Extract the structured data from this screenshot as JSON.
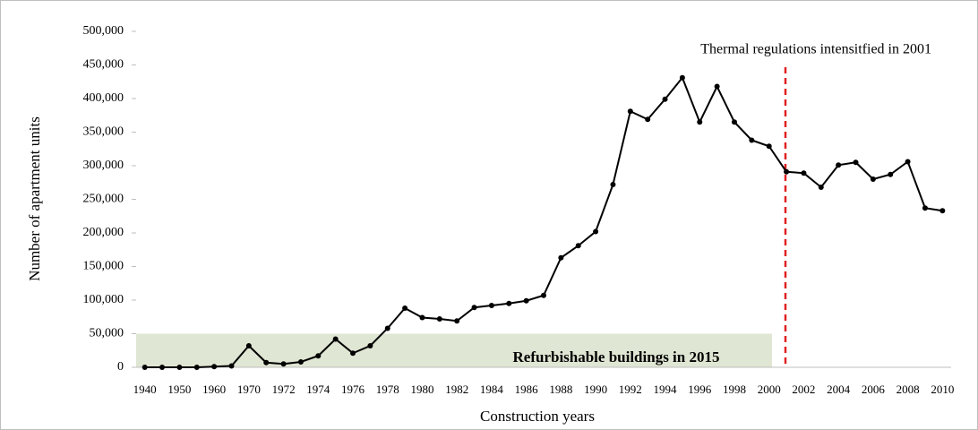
{
  "chart_data": {
    "type": "line",
    "annotation": "Thermal regulations intensitfied in 2001",
    "band": {
      "text": "Refurbishable buildings in 2015",
      "top": 50000,
      "color": "#dfe6d3"
    },
    "xlabel": "Construction years",
    "ylabel": "Number of apartment units",
    "categories": [
      "1940",
      null,
      "1950",
      null,
      "1960",
      null,
      "1970",
      null,
      "1972",
      null,
      "1974",
      null,
      "1976",
      null,
      "1978",
      null,
      "1980",
      null,
      "1982",
      null,
      "1984",
      null,
      "1986",
      null,
      "1988",
      null,
      "1990",
      null,
      "1992",
      null,
      "1994",
      null,
      "1996",
      null,
      "1998",
      null,
      "2000",
      null,
      "2002",
      null,
      "2004",
      null,
      "2006",
      null,
      "2008",
      null,
      "2010"
    ],
    "series": [
      {
        "name": "Apartment units",
        "color": "#000000",
        "values": [
          0,
          0,
          0,
          0,
          1000,
          2000,
          32000,
          7000,
          5000,
          8000,
          17000,
          42000,
          21000,
          32000,
          58000,
          88000,
          74000,
          72000,
          69000,
          89000,
          92000,
          95000,
          99000,
          107000,
          163000,
          181000,
          202000,
          272000,
          381000,
          369000,
          399000,
          431000,
          365000,
          418000,
          365000,
          338000,
          329000,
          291000,
          289000,
          268000,
          301000,
          305000,
          280000,
          287000,
          306000,
          237000,
          233000
        ]
      }
    ],
    "ylim": [
      0,
      500000
    ],
    "yticks": [
      0,
      {
        "value": 50000,
        "label": "50,000"
      },
      {
        "value": 100000,
        "label": "100,000"
      },
      {
        "value": 150000,
        "label": "150,000"
      },
      {
        "value": 200000,
        "label": "200,000"
      },
      {
        "value": 250000,
        "label": "250,000"
      },
      {
        "value": 300000,
        "label": "300,000"
      },
      {
        "value": 350000,
        "label": "350,000"
      },
      {
        "value": 400000,
        "label": "400,000"
      },
      {
        "value": 450000,
        "label": "450,000"
      },
      {
        "value": 500000,
        "label": "500,000"
      }
    ],
    "reference_line_color": "#e02020",
    "grid": false
  }
}
